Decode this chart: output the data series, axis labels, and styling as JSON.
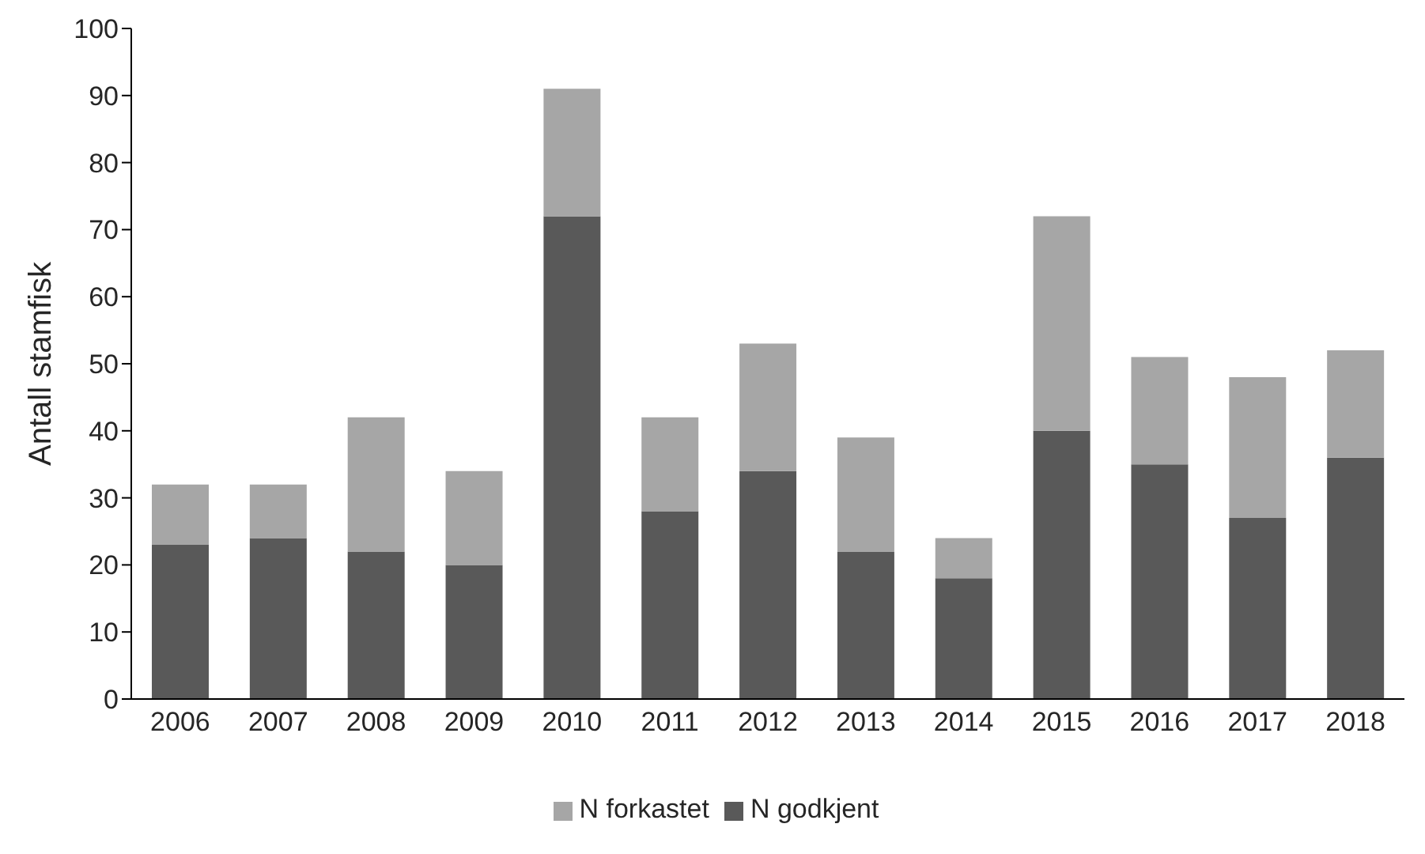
{
  "chart_data": {
    "type": "bar",
    "stacked": true,
    "ylabel": "Antall stamfisk",
    "categories": [
      "2006",
      "2007",
      "2008",
      "2009",
      "2010",
      "2011",
      "2012",
      "2013",
      "2014",
      "2015",
      "2016",
      "2017",
      "2018"
    ],
    "series": [
      {
        "name": "N godkjent",
        "color": "#595959",
        "values": [
          23,
          24,
          22,
          20,
          72,
          28,
          34,
          22,
          18,
          40,
          35,
          27,
          36
        ]
      },
      {
        "name": "N forkastet",
        "color": "#a6a6a6",
        "values": [
          9,
          8,
          20,
          14,
          19,
          14,
          19,
          17,
          6,
          32,
          16,
          21,
          16
        ]
      }
    ],
    "ylim": [
      0,
      100
    ],
    "yticks": [
      0,
      10,
      20,
      30,
      40,
      50,
      60,
      70,
      80,
      90,
      100
    ],
    "grid": false,
    "legend": "bottom"
  }
}
